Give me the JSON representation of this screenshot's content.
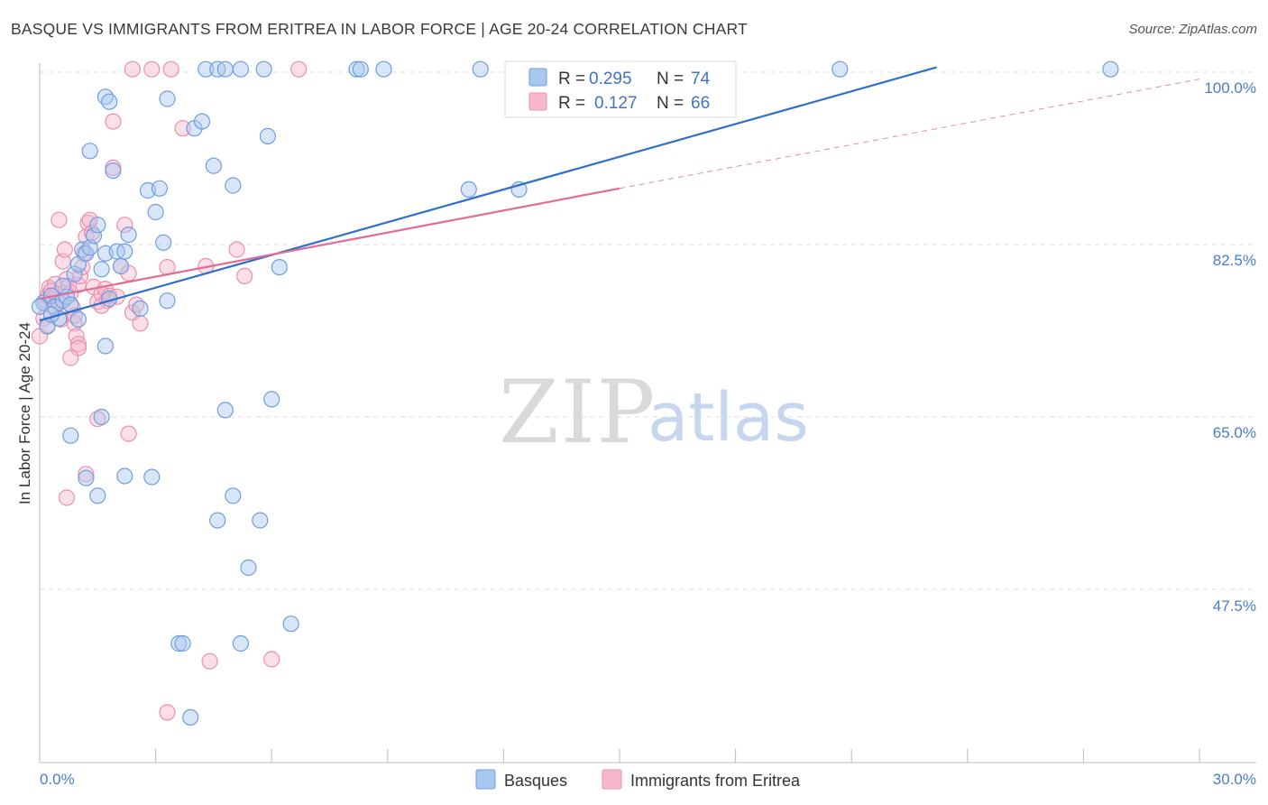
{
  "title": "BASQUE VS IMMIGRANTS FROM ERITREA IN LABOR FORCE | AGE 20-24 CORRELATION CHART",
  "source": "Source: ZipAtlas.com",
  "watermark": {
    "part1": "ZIP",
    "part2": "atlas"
  },
  "colors": {
    "blue_fill": "#a9c8f0",
    "blue_stroke": "#6f9ee0",
    "blue_line": "#2f6fcb",
    "pink_fill": "#f6b9cc",
    "pink_stroke": "#ec8fab",
    "pink_line": "#e06b97",
    "tick_text": "#4a7ccc",
    "grid": "#dddddd"
  },
  "legend": {
    "rows": [
      {
        "r_label": "R =",
        "r_value": "0.295",
        "n_label": "N =",
        "n_value": "74"
      },
      {
        "r_label": "R =",
        "r_value": "0.127",
        "n_label": "N =",
        "n_value": "66"
      }
    ]
  },
  "bottom_legend": [
    "Basques",
    "Immigrants from Eritrea"
  ],
  "chart_data": {
    "type": "scatter",
    "title": "BASQUE VS IMMIGRANTS FROM ERITREA IN LABOR FORCE | AGE 20-24 CORRELATION CHART",
    "xlabel": "",
    "ylabel": "In Labor Force | Age 20-24",
    "xlim": [
      0,
      30
    ],
    "ylim": [
      29.5,
      102
    ],
    "x_tick_labels": [
      "0.0%",
      "30.0%"
    ],
    "y_ticks": [
      47.5,
      65.0,
      82.5,
      100.0
    ],
    "y_tick_labels": [
      "47.5%",
      "65.0%",
      "82.5%",
      "100.0%"
    ],
    "series": [
      {
        "name": "Basques",
        "color": "blue",
        "R": 0.295,
        "N": 74,
        "trend": {
          "x": [
            0,
            23.2
          ],
          "y": [
            74.8,
            100.5
          ]
        },
        "points": [
          [
            0.1,
            76.6
          ],
          [
            0.2,
            74.2
          ],
          [
            0.3,
            77.3
          ],
          [
            0.4,
            76.2
          ],
          [
            0.5,
            75.0
          ],
          [
            0.6,
            76.8
          ],
          [
            0.7,
            77.2
          ],
          [
            0.8,
            76.4
          ],
          [
            0.9,
            79.5
          ],
          [
            1.0,
            80.5
          ],
          [
            1.1,
            82.0
          ],
          [
            1.2,
            81.6
          ],
          [
            1.3,
            82.2
          ],
          [
            1.4,
            83.4
          ],
          [
            1.5,
            84.5
          ],
          [
            1.6,
            80.0
          ],
          [
            1.7,
            81.6
          ],
          [
            1.8,
            77.0
          ],
          [
            2.0,
            81.8
          ],
          [
            2.1,
            80.3
          ],
          [
            2.2,
            81.8
          ],
          [
            2.3,
            83.5
          ],
          [
            2.6,
            76.0
          ],
          [
            2.8,
            88.0
          ],
          [
            3.0,
            85.8
          ],
          [
            3.1,
            88.2
          ],
          [
            3.2,
            82.7
          ],
          [
            3.3,
            76.8
          ],
          [
            1.9,
            90.0
          ],
          [
            1.3,
            92.0
          ],
          [
            1.7,
            97.5
          ],
          [
            1.8,
            97.0
          ],
          [
            3.3,
            97.3
          ],
          [
            4.0,
            94.3
          ],
          [
            4.2,
            95.0
          ],
          [
            4.5,
            90.5
          ],
          [
            5.0,
            88.5
          ],
          [
            5.9,
            93.5
          ],
          [
            6.2,
            80.2
          ],
          [
            6.0,
            66.8
          ],
          [
            4.8,
            65.7
          ],
          [
            5.0,
            57.0
          ],
          [
            1.6,
            65.0
          ],
          [
            0.8,
            63.1
          ],
          [
            1.2,
            58.8
          ],
          [
            1.5,
            57.0
          ],
          [
            2.2,
            59.0
          ],
          [
            2.9,
            58.9
          ],
          [
            4.6,
            54.5
          ],
          [
            5.7,
            54.5
          ],
          [
            5.4,
            49.7
          ],
          [
            6.5,
            44.0
          ],
          [
            3.6,
            42.0
          ],
          [
            3.7,
            42.0
          ],
          [
            5.2,
            42.0
          ],
          [
            3.9,
            34.5
          ],
          [
            1.7,
            72.2
          ],
          [
            4.3,
            100.3
          ],
          [
            4.6,
            100.3
          ],
          [
            4.8,
            100.3
          ],
          [
            5.2,
            100.3
          ],
          [
            5.8,
            100.3
          ],
          [
            8.2,
            100.3
          ],
          [
            8.3,
            100.3
          ],
          [
            8.9,
            100.3
          ],
          [
            11.4,
            100.3
          ],
          [
            11.1,
            88.1
          ],
          [
            12.4,
            88.1
          ],
          [
            20.7,
            100.3
          ],
          [
            27.7,
            100.3
          ],
          [
            0.0,
            76.2
          ],
          [
            0.3,
            75.4
          ],
          [
            1.0,
            74.9
          ],
          [
            0.6,
            78.3
          ]
        ]
      },
      {
        "name": "Immigrants from Eritrea",
        "color": "pink",
        "R": 0.127,
        "N": 66,
        "trend": {
          "x": [
            0,
            15.0
          ],
          "y": [
            77.0,
            88.2
          ]
        },
        "trend_extension": {
          "x": [
            15.0,
            30.0
          ],
          "y": [
            88.2,
            99.3
          ]
        },
        "points": [
          [
            0.0,
            73.2
          ],
          [
            0.1,
            75.0
          ],
          [
            0.15,
            76.8
          ],
          [
            0.2,
            77.3
          ],
          [
            0.25,
            78.1
          ],
          [
            0.3,
            77.0
          ],
          [
            0.35,
            76.2
          ],
          [
            0.4,
            78.5
          ],
          [
            0.45,
            77.5
          ],
          [
            0.5,
            76.6
          ],
          [
            0.55,
            74.9
          ],
          [
            0.6,
            80.8
          ],
          [
            0.65,
            82.0
          ],
          [
            0.7,
            79.0
          ],
          [
            0.75,
            78.3
          ],
          [
            0.8,
            77.6
          ],
          [
            0.85,
            76.1
          ],
          [
            0.9,
            74.5
          ],
          [
            0.95,
            73.2
          ],
          [
            1.0,
            78.4
          ],
          [
            1.05,
            79.3
          ],
          [
            1.1,
            80.2
          ],
          [
            1.15,
            81.6
          ],
          [
            1.2,
            83.3
          ],
          [
            1.25,
            84.7
          ],
          [
            1.3,
            85.0
          ],
          [
            1.35,
            83.7
          ],
          [
            1.4,
            78.2
          ],
          [
            1.5,
            76.7
          ],
          [
            1.6,
            77.5
          ],
          [
            1.7,
            78.0
          ],
          [
            1.75,
            76.8
          ],
          [
            1.8,
            77.3
          ],
          [
            2.0,
            77.2
          ],
          [
            2.1,
            80.3
          ],
          [
            2.2,
            84.5
          ],
          [
            2.3,
            79.6
          ],
          [
            2.4,
            75.6
          ],
          [
            2.6,
            74.5
          ],
          [
            0.5,
            85.0
          ],
          [
            1.9,
            90.3
          ],
          [
            1.9,
            95.0
          ],
          [
            3.7,
            94.3
          ],
          [
            3.3,
            80.2
          ],
          [
            5.1,
            82.0
          ],
          [
            5.3,
            79.3
          ],
          [
            4.3,
            80.3
          ],
          [
            1.0,
            72.4
          ],
          [
            1.0,
            72.0
          ],
          [
            0.8,
            71.0
          ],
          [
            1.5,
            64.8
          ],
          [
            2.3,
            63.3
          ],
          [
            1.2,
            59.2
          ],
          [
            0.7,
            56.8
          ],
          [
            4.4,
            40.2
          ],
          [
            6.0,
            40.4
          ],
          [
            3.3,
            35.0
          ],
          [
            2.4,
            100.3
          ],
          [
            2.9,
            100.3
          ],
          [
            3.4,
            100.3
          ],
          [
            6.7,
            100.3
          ],
          [
            2.5,
            76.4
          ],
          [
            1.6,
            76.3
          ],
          [
            0.3,
            77.8
          ],
          [
            0.9,
            75.3
          ],
          [
            0.2,
            74.3
          ]
        ]
      }
    ]
  }
}
